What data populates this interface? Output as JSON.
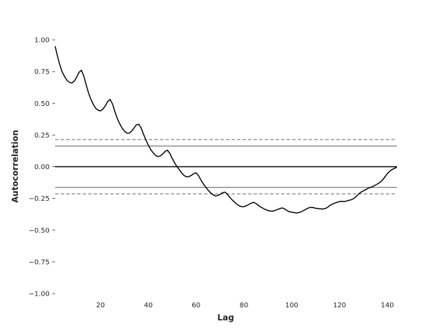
{
  "chart_data": {
    "type": "line",
    "title": "",
    "xlabel": "Lag",
    "ylabel": "Autocorrelation",
    "xlim": [
      1,
      144
    ],
    "ylim": [
      -1.0,
      1.0
    ],
    "x_ticks": [
      20,
      40,
      60,
      80,
      100,
      120,
      140
    ],
    "x_tick_labels": [
      "20",
      "40",
      "60",
      "80",
      "100",
      "120",
      "140"
    ],
    "y_ticks": [
      -1.0,
      -0.75,
      -0.5,
      -0.25,
      0.0,
      0.25,
      0.5,
      0.75,
      1.0
    ],
    "y_tick_labels": [
      "−1.00",
      "−0.75",
      "−0.50",
      "−0.25",
      "0.00",
      "0.25",
      "0.50",
      "0.75",
      "1.00"
    ],
    "grid": false,
    "reference_lines": [
      {
        "y": 0.214,
        "style": "dashed",
        "color": "#808080"
      },
      {
        "y": 0.163,
        "style": "solid",
        "color": "#808080"
      },
      {
        "y": 0.0,
        "style": "solid",
        "color": "#000000"
      },
      {
        "y": -0.163,
        "style": "solid",
        "color": "#808080"
      },
      {
        "y": -0.214,
        "style": "dashed",
        "color": "#808080"
      }
    ],
    "series": [
      {
        "color": "#000000",
        "points": [
          [
            1,
            0.95
          ],
          [
            2,
            0.87
          ],
          [
            3,
            0.8
          ],
          [
            4,
            0.745
          ],
          [
            5,
            0.71
          ],
          [
            6,
            0.68
          ],
          [
            7,
            0.665
          ],
          [
            8,
            0.66
          ],
          [
            9,
            0.675
          ],
          [
            10,
            0.705
          ],
          [
            11,
            0.745
          ],
          [
            12,
            0.76
          ],
          [
            13,
            0.715
          ],
          [
            14,
            0.645
          ],
          [
            15,
            0.58
          ],
          [
            16,
            0.53
          ],
          [
            17,
            0.49
          ],
          [
            18,
            0.46
          ],
          [
            19,
            0.445
          ],
          [
            20,
            0.44
          ],
          [
            21,
            0.455
          ],
          [
            22,
            0.48
          ],
          [
            23,
            0.515
          ],
          [
            24,
            0.53
          ],
          [
            25,
            0.495
          ],
          [
            26,
            0.435
          ],
          [
            27,
            0.38
          ],
          [
            28,
            0.34
          ],
          [
            29,
            0.305
          ],
          [
            30,
            0.28
          ],
          [
            31,
            0.265
          ],
          [
            32,
            0.265
          ],
          [
            33,
            0.28
          ],
          [
            34,
            0.305
          ],
          [
            35,
            0.33
          ],
          [
            36,
            0.335
          ],
          [
            37,
            0.305
          ],
          [
            38,
            0.255
          ],
          [
            39,
            0.21
          ],
          [
            40,
            0.17
          ],
          [
            41,
            0.135
          ],
          [
            42,
            0.11
          ],
          [
            43,
            0.09
          ],
          [
            44,
            0.08
          ],
          [
            45,
            0.085
          ],
          [
            46,
            0.1
          ],
          [
            47,
            0.12
          ],
          [
            48,
            0.13
          ],
          [
            49,
            0.105
          ],
          [
            50,
            0.065
          ],
          [
            51,
            0.03
          ],
          [
            52,
            0.0
          ],
          [
            53,
            -0.025
          ],
          [
            54,
            -0.05
          ],
          [
            55,
            -0.07
          ],
          [
            56,
            -0.08
          ],
          [
            57,
            -0.078
          ],
          [
            58,
            -0.068
          ],
          [
            59,
            -0.055
          ],
          [
            60,
            -0.048
          ],
          [
            61,
            -0.07
          ],
          [
            62,
            -0.105
          ],
          [
            63,
            -0.135
          ],
          [
            64,
            -0.16
          ],
          [
            65,
            -0.185
          ],
          [
            66,
            -0.205
          ],
          [
            67,
            -0.22
          ],
          [
            68,
            -0.23
          ],
          [
            69,
            -0.228
          ],
          [
            70,
            -0.218
          ],
          [
            71,
            -0.205
          ],
          [
            72,
            -0.2
          ],
          [
            73,
            -0.215
          ],
          [
            74,
            -0.24
          ],
          [
            75,
            -0.26
          ],
          [
            76,
            -0.278
          ],
          [
            77,
            -0.295
          ],
          [
            78,
            -0.308
          ],
          [
            79,
            -0.315
          ],
          [
            80,
            -0.315
          ],
          [
            81,
            -0.308
          ],
          [
            82,
            -0.298
          ],
          [
            83,
            -0.288
          ],
          [
            84,
            -0.28
          ],
          [
            85,
            -0.29
          ],
          [
            86,
            -0.305
          ],
          [
            87,
            -0.318
          ],
          [
            88,
            -0.328
          ],
          [
            89,
            -0.338
          ],
          [
            90,
            -0.345
          ],
          [
            91,
            -0.35
          ],
          [
            92,
            -0.35
          ],
          [
            93,
            -0.345
          ],
          [
            94,
            -0.338
          ],
          [
            95,
            -0.33
          ],
          [
            96,
            -0.325
          ],
          [
            97,
            -0.332
          ],
          [
            98,
            -0.345
          ],
          [
            99,
            -0.355
          ],
          [
            100,
            -0.358
          ],
          [
            101,
            -0.362
          ],
          [
            102,
            -0.365
          ],
          [
            103,
            -0.362
          ],
          [
            104,
            -0.355
          ],
          [
            105,
            -0.345
          ],
          [
            106,
            -0.335
          ],
          [
            107,
            -0.325
          ],
          [
            108,
            -0.32
          ],
          [
            109,
            -0.322
          ],
          [
            110,
            -0.328
          ],
          [
            111,
            -0.33
          ],
          [
            112,
            -0.332
          ],
          [
            113,
            -0.333
          ],
          [
            114,
            -0.33
          ],
          [
            115,
            -0.32
          ],
          [
            116,
            -0.305
          ],
          [
            117,
            -0.295
          ],
          [
            118,
            -0.287
          ],
          [
            119,
            -0.28
          ],
          [
            120,
            -0.275
          ],
          [
            121,
            -0.273
          ],
          [
            122,
            -0.275
          ],
          [
            123,
            -0.27
          ],
          [
            124,
            -0.265
          ],
          [
            125,
            -0.26
          ],
          [
            126,
            -0.25
          ],
          [
            127,
            -0.235
          ],
          [
            128,
            -0.215
          ],
          [
            129,
            -0.2
          ],
          [
            130,
            -0.19
          ],
          [
            131,
            -0.18
          ],
          [
            132,
            -0.17
          ],
          [
            133,
            -0.162
          ],
          [
            134,
            -0.155
          ],
          [
            135,
            -0.145
          ],
          [
            136,
            -0.135
          ],
          [
            137,
            -0.122
          ],
          [
            138,
            -0.105
          ],
          [
            139,
            -0.08
          ],
          [
            140,
            -0.055
          ],
          [
            141,
            -0.035
          ],
          [
            142,
            -0.022
          ],
          [
            143,
            -0.012
          ],
          [
            144,
            -0.005
          ]
        ]
      }
    ]
  }
}
